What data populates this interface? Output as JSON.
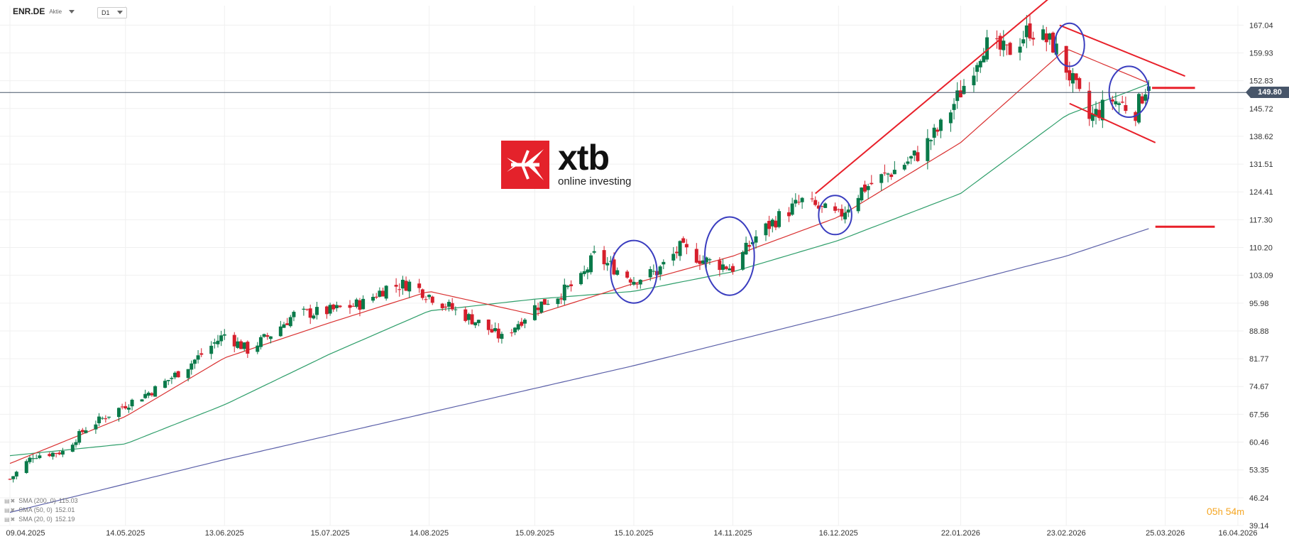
{
  "header": {
    "symbol": "ENR.DE",
    "instrument_type": "Aktie",
    "timeframe": "D1"
  },
  "price_tag": "149.80",
  "logo": {
    "word": "xtb",
    "tagline": "online investing"
  },
  "countdown": {
    "hours": "05",
    "h_unit": "h",
    "minutes": "54",
    "m_unit": "m"
  },
  "legend": [
    {
      "label": "SMA (200, 0)",
      "value": "115.03",
      "color": "#5a5fa8"
    },
    {
      "label": "SMA (50, 0)",
      "value": "152.01",
      "color": "#2e9e6a"
    },
    {
      "label": "SMA (20, 0)",
      "value": "152.19",
      "color": "#d93030"
    }
  ],
  "colors": {
    "up": "#0a7a4a",
    "down": "#d61f2c",
    "sma200": "#5a5fa8",
    "sma50": "#2e9e6a",
    "sma20": "#d93030",
    "trendline": "#e8202a",
    "circle": "#3a3dbf",
    "price_line": "#475569",
    "grid": "#f0f0f0"
  },
  "chart_data": {
    "type": "candlestick",
    "yaxis_ticks": [
      "167.04",
      "159.93",
      "152.83",
      "145.72",
      "138.62",
      "131.51",
      "124.41",
      "117.30",
      "110.20",
      "103.09",
      "95.98",
      "88.88",
      "81.77",
      "74.67",
      "67.56",
      "60.46",
      "53.35",
      "46.24",
      "39.14"
    ],
    "ylim": [
      39.14,
      172.0
    ],
    "last_price": 149.8,
    "xaxis_ticks": [
      {
        "label": "09.04.2025",
        "date": "2025-04-09"
      },
      {
        "label": "14.05.2025",
        "date": "2025-05-14"
      },
      {
        "label": "13.06.2025",
        "date": "2025-06-13"
      },
      {
        "label": "15.07.2025",
        "date": "2025-07-15"
      },
      {
        "label": "14.08.2025",
        "date": "2025-08-14"
      },
      {
        "label": "15.09.2025",
        "date": "2025-09-15"
      },
      {
        "label": "15.10.2025",
        "date": "2025-10-15"
      },
      {
        "label": "14.11.2025",
        "date": "2025-11-14"
      },
      {
        "label": "16.12.2025",
        "date": "2025-12-16"
      },
      {
        "label": "22.01.2026",
        "date": "2026-01-22"
      },
      {
        "label": "23.02.2026",
        "date": "2026-02-23"
      },
      {
        "label": "25.03.2026",
        "date": "2026-03-25"
      },
      {
        "label": "16.04.2026",
        "date": "2026-04-16"
      }
    ],
    "price_path": [
      [
        "2025-04-09",
        51
      ],
      [
        "2025-04-16",
        57
      ],
      [
        "2025-04-25",
        58
      ],
      [
        "2025-05-02",
        64
      ],
      [
        "2025-05-14",
        70
      ],
      [
        "2025-05-23",
        74
      ],
      [
        "2025-06-02",
        80
      ],
      [
        "2025-06-13",
        88
      ],
      [
        "2025-06-20",
        84
      ],
      [
        "2025-06-27",
        88
      ],
      [
        "2025-07-04",
        93
      ],
      [
        "2025-07-15",
        94
      ],
      [
        "2025-07-25",
        96
      ],
      [
        "2025-08-01",
        100
      ],
      [
        "2025-08-08",
        101
      ],
      [
        "2025-08-14",
        98
      ],
      [
        "2025-08-22",
        94
      ],
      [
        "2025-08-29",
        91
      ],
      [
        "2025-09-05",
        87
      ],
      [
        "2025-09-15",
        95
      ],
      [
        "2025-09-22",
        98
      ],
      [
        "2025-09-29",
        102
      ],
      [
        "2025-10-03",
        108
      ],
      [
        "2025-10-15",
        102
      ],
      [
        "2025-10-22",
        104
      ],
      [
        "2025-10-29",
        110
      ],
      [
        "2025-11-05",
        107
      ],
      [
        "2025-11-14",
        105
      ],
      [
        "2025-11-21",
        113
      ],
      [
        "2025-11-28",
        118
      ],
      [
        "2025-12-05",
        122
      ],
      [
        "2025-12-16",
        118
      ],
      [
        "2025-12-23",
        125
      ],
      [
        "2026-01-02",
        130
      ],
      [
        "2026-01-09",
        134
      ],
      [
        "2026-01-16",
        141
      ],
      [
        "2026-01-22",
        150
      ],
      [
        "2026-01-29",
        162
      ],
      [
        "2026-02-05",
        160
      ],
      [
        "2026-02-12",
        166
      ],
      [
        "2026-02-19",
        162
      ],
      [
        "2026-02-23",
        156
      ],
      [
        "2026-03-02",
        143
      ],
      [
        "2026-03-09",
        148
      ],
      [
        "2026-03-16",
        145
      ],
      [
        "2026-03-20",
        153
      ]
    ],
    "sma200": [
      [
        "2025-04-09",
        42.5
      ],
      [
        "2025-06-13",
        56
      ],
      [
        "2025-08-14",
        68
      ],
      [
        "2025-10-15",
        80
      ],
      [
        "2025-12-16",
        93
      ],
      [
        "2026-02-23",
        108
      ],
      [
        "2026-03-20",
        115.03
      ]
    ],
    "sma50": [
      [
        "2025-04-09",
        57
      ],
      [
        "2025-05-14",
        60
      ],
      [
        "2025-06-13",
        70
      ],
      [
        "2025-07-15",
        83
      ],
      [
        "2025-08-14",
        94
      ],
      [
        "2025-09-15",
        97
      ],
      [
        "2025-10-15",
        99
      ],
      [
        "2025-11-14",
        104
      ],
      [
        "2025-12-16",
        112
      ],
      [
        "2026-01-22",
        124
      ],
      [
        "2026-02-23",
        144
      ],
      [
        "2026-03-20",
        152.01
      ]
    ],
    "sma20": [
      [
        "2025-04-09",
        55
      ],
      [
        "2025-05-14",
        67
      ],
      [
        "2025-06-13",
        82
      ],
      [
        "2025-07-15",
        91
      ],
      [
        "2025-08-14",
        99
      ],
      [
        "2025-09-15",
        93
      ],
      [
        "2025-10-15",
        101
      ],
      [
        "2025-11-14",
        108
      ],
      [
        "2025-12-16",
        118
      ],
      [
        "2026-01-22",
        137
      ],
      [
        "2026-02-23",
        161
      ],
      [
        "2026-03-20",
        152.19
      ]
    ],
    "annotations": {
      "trendlines": [
        {
          "from": [
            "2025-12-09",
            124
          ],
          "to": [
            "2026-02-18",
            174
          ]
        },
        {
          "from": [
            "2026-02-21",
            167
          ],
          "to": [
            "2026-03-31",
            154
          ]
        },
        {
          "from": [
            "2026-02-24",
            147
          ],
          "to": [
            "2026-03-22",
            137
          ]
        }
      ],
      "levels": [
        {
          "from": "2026-03-21",
          "to": "2026-04-03",
          "price": 151
        },
        {
          "from": "2026-03-22",
          "to": "2026-04-09",
          "price": 115.5
        }
      ],
      "circles": [
        {
          "center": [
            "2025-10-15",
            104
          ],
          "rx_days": 7,
          "ry_price": 8
        },
        {
          "center": [
            "2025-11-13",
            108
          ],
          "rx_days": 7.5,
          "ry_price": 10
        },
        {
          "center": [
            "2025-12-15",
            118.5
          ],
          "rx_days": 5,
          "ry_price": 5
        },
        {
          "center": [
            "2026-02-24",
            162
          ],
          "rx_days": 4.5,
          "ry_price": 5.5
        },
        {
          "center": [
            "2026-03-14",
            150
          ],
          "rx_days": 6,
          "ry_price": 6.5
        }
      ]
    }
  }
}
